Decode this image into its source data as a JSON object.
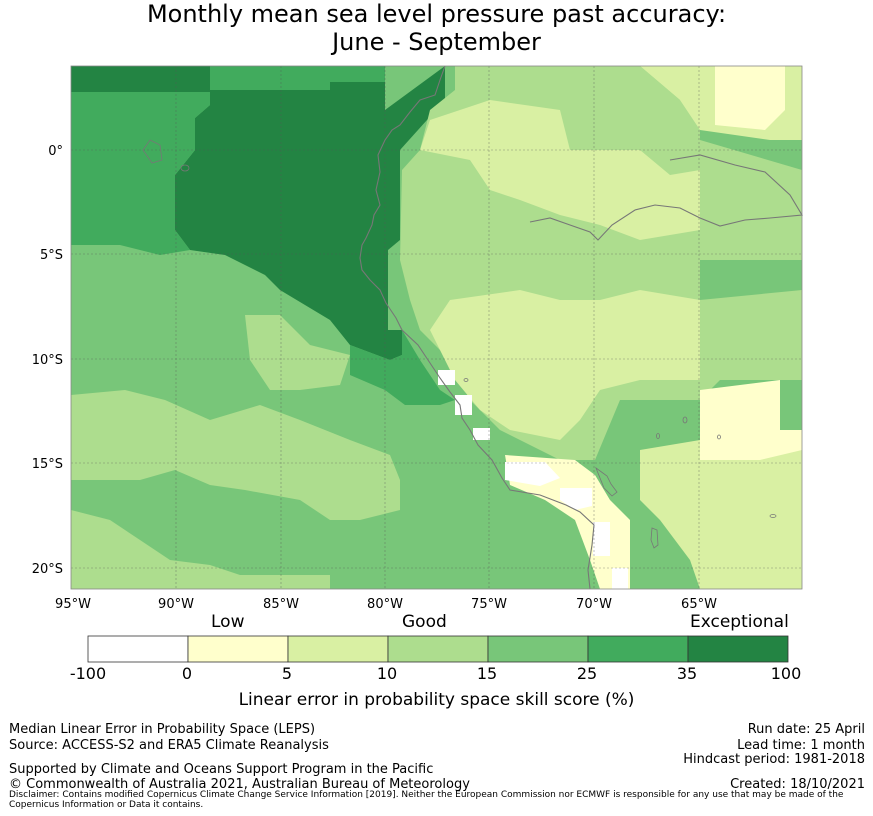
{
  "title": {
    "line1": "Monthly mean sea level pressure past accuracy:",
    "line2": "June - September"
  },
  "map": {
    "lat_labels": [
      "0°",
      "5°S",
      "10°S",
      "15°S",
      "20°S"
    ],
    "lon_labels": [
      "95°W",
      "90°W",
      "85°W",
      "80°W",
      "75°W",
      "70°W",
      "65°W"
    ]
  },
  "colorbar": {
    "categories": [
      "Low",
      "Good",
      "Exceptional"
    ],
    "ticks": [
      "-100",
      "0",
      "5",
      "10",
      "15",
      "25",
      "35",
      "100"
    ],
    "colors": [
      "#ffffff",
      "#ffffcc",
      "#d9f0a3",
      "#addd8e",
      "#78c679",
      "#41ab5d",
      "#238443"
    ],
    "label": "Linear error in probability space skill score (%)"
  },
  "footer": {
    "left1": "Median Linear Error in Probability Space (LEPS)",
    "left2": "Source: ACCESS-S2 and ERA5 Climate Reanalysis",
    "left3": "Supported by Climate and Oceans Support Program in the Pacific",
    "left4": "© Commonwealth of Australia 2021, Australian Bureau of Meteorology",
    "right1": "Run date: 25 April",
    "right2": "Lead time: 1 month",
    "right3": "Hindcast period: 1981-2018",
    "right4": "Created: 18/10/2021",
    "disclaimer": "Disclaimer: Contains modified Copernicus Climate Change Service Information [2019]. Neither the European Commission nor ECMWF is responsible for any use that may be made of the Copernicus Information or Data it contains."
  }
}
